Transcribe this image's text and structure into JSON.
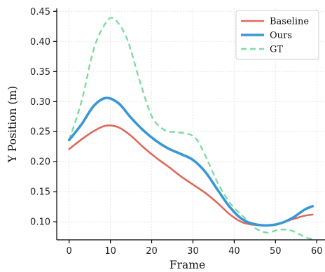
{
  "chart_data": {
    "type": "line",
    "title": "",
    "xlabel": "Frame",
    "ylabel": "Y Position (m)",
    "xlim": [
      -3,
      62
    ],
    "ylim": [
      0.07,
      0.455
    ],
    "xticks": [
      0,
      10,
      20,
      30,
      40,
      50,
      60
    ],
    "yticks": [
      0.1,
      0.15,
      0.2,
      0.25,
      0.3,
      0.35,
      0.4,
      0.45
    ],
    "xtick_labels": [
      "0",
      "10",
      "20",
      "30",
      "40",
      "50",
      "60"
    ],
    "ytick_labels": [
      "0.10",
      "0.15",
      "0.20",
      "0.25",
      "0.30",
      "0.35",
      "0.40",
      "0.45"
    ],
    "grid": true,
    "legend_position": "top-right",
    "series": [
      {
        "name": "Baseline",
        "color": "#e0675a",
        "style": "solid",
        "x": [
          0,
          3,
          6,
          9,
          12,
          15,
          18,
          21,
          24,
          27,
          30,
          33,
          36,
          39,
          42,
          45,
          48,
          51,
          54,
          57,
          59
        ],
        "y": [
          0.221,
          0.237,
          0.251,
          0.26,
          0.257,
          0.243,
          0.224,
          0.207,
          0.192,
          0.176,
          0.162,
          0.148,
          0.131,
          0.112,
          0.099,
          0.095,
          0.094,
          0.097,
          0.104,
          0.11,
          0.112
        ]
      },
      {
        "name": "Ours",
        "color": "#3a97d4",
        "style": "solid",
        "x": [
          0,
          3,
          6,
          9,
          12,
          15,
          18,
          21,
          24,
          27,
          30,
          33,
          36,
          39,
          42,
          45,
          48,
          51,
          54,
          57,
          59
        ],
        "y": [
          0.236,
          0.262,
          0.293,
          0.306,
          0.297,
          0.273,
          0.252,
          0.235,
          0.222,
          0.213,
          0.203,
          0.183,
          0.153,
          0.124,
          0.104,
          0.096,
          0.094,
          0.097,
          0.106,
          0.12,
          0.126
        ]
      },
      {
        "name": "GT",
        "color": "#7fdba0",
        "style": "dashed",
        "x": [
          0,
          3,
          6,
          9,
          11,
          14,
          17,
          20,
          23,
          26,
          29,
          31,
          33,
          36,
          39,
          42,
          45,
          48,
          51,
          54,
          57,
          59
        ],
        "y": [
          0.236,
          0.3,
          0.388,
          0.432,
          0.437,
          0.405,
          0.337,
          0.276,
          0.253,
          0.249,
          0.246,
          0.236,
          0.21,
          0.165,
          0.131,
          0.11,
          0.09,
          0.082,
          0.087,
          0.085,
          0.075,
          0.071
        ]
      }
    ]
  }
}
